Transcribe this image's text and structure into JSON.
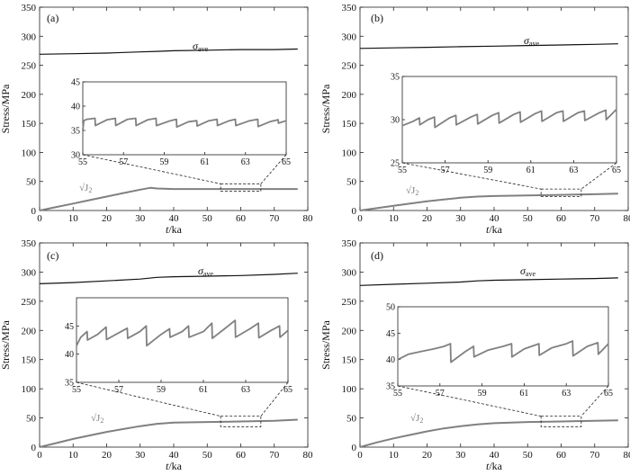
{
  "figure": {
    "panel_count": 4
  },
  "chart_data": [
    {
      "type": "line",
      "panel_label": "(a)",
      "xlabel_italic": "t",
      "xlabel_unit": "/ka",
      "ylabel": "Stress/MPa",
      "xlim": [
        0,
        80
      ],
      "ylim": [
        0,
        350
      ],
      "xticks": [
        "0",
        "10",
        "20",
        "30",
        "40",
        "50",
        "60",
        "70",
        "80"
      ],
      "yticks": [
        "0",
        "50",
        "100",
        "150",
        "200",
        "250",
        "300",
        "350"
      ],
      "series": [
        {
          "name": "sigma_ave",
          "label_main": "σ",
          "label_sub": "ave",
          "color": "#111111",
          "x": [
            0,
            10,
            20,
            30,
            35,
            40,
            50,
            60,
            70,
            77
          ],
          "y": [
            269,
            270,
            271,
            273,
            274,
            275,
            276,
            277,
            277,
            278
          ]
        },
        {
          "name": "sqrt_J2",
          "label_main": "√J",
          "label_sub": "2",
          "color": "#808080",
          "x": [
            0,
            5,
            10,
            15,
            20,
            25,
            30,
            33,
            35,
            40,
            50,
            60,
            70,
            77
          ],
          "y": [
            0,
            6,
            12,
            18,
            24,
            30,
            36,
            39,
            38,
            37,
            37,
            37,
            37,
            37
          ]
        }
      ],
      "inset": {
        "xlim": [
          55,
          65
        ],
        "ylim": [
          30,
          45
        ],
        "xticks": [
          "55",
          "57",
          "59",
          "61",
          "63",
          "65"
        ],
        "yticks": [
          "30",
          "35",
          "40",
          "45"
        ],
        "zoom_y": [
          33,
          46
        ],
        "x": [
          55,
          55.05,
          55.2,
          55.6,
          55.62,
          56.2,
          56.6,
          56.62,
          57.2,
          57.6,
          57.62,
          58.2,
          58.6,
          58.62,
          59.3,
          59.6,
          59.62,
          60.2,
          60.6,
          60.62,
          61.2,
          61.6,
          61.62,
          62.2,
          62.5,
          62.52,
          63.2,
          63.6,
          63.62,
          64.2,
          64.6,
          64.62,
          65
        ],
        "y": [
          35,
          37,
          37.3,
          37.5,
          36,
          37.2,
          37.5,
          36,
          37.3,
          37.5,
          36,
          37.2,
          37.5,
          36,
          37,
          37.3,
          35.7,
          36.8,
          37,
          35.9,
          37,
          37.3,
          36,
          37,
          37.3,
          36,
          37,
          37.3,
          35.8,
          36.8,
          37.2,
          36.5,
          37
        ]
      }
    },
    {
      "type": "line",
      "panel_label": "(b)",
      "xlabel_italic": "t",
      "xlabel_unit": "/ka",
      "ylabel": "Stress/MPa",
      "xlim": [
        0,
        80
      ],
      "ylim": [
        0,
        350
      ],
      "xticks": [
        "0",
        "10",
        "20",
        "30",
        "40",
        "50",
        "60",
        "70",
        "80"
      ],
      "yticks": [
        "0",
        "50",
        "100",
        "150",
        "200",
        "250",
        "300",
        "350"
      ],
      "series": [
        {
          "name": "sigma_ave",
          "label_main": "σ",
          "label_sub": "ave",
          "color": "#111111",
          "x": [
            0,
            10,
            20,
            30,
            40,
            50,
            60,
            70,
            77
          ],
          "y": [
            279,
            280,
            281,
            282,
            283,
            284,
            285,
            286,
            287
          ]
        },
        {
          "name": "sqrt_J2",
          "label_main": "√J",
          "label_sub": "2",
          "color": "#808080",
          "x": [
            0,
            5,
            10,
            15,
            20,
            25,
            30,
            35,
            40,
            50,
            60,
            70,
            77
          ],
          "y": [
            0,
            4,
            8,
            12,
            16,
            19,
            22,
            24,
            25,
            26,
            27,
            28,
            29
          ]
        }
      ],
      "inset": {
        "xlim": [
          55,
          65
        ],
        "ylim": [
          25,
          35
        ],
        "xticks": [
          "55",
          "57",
          "59",
          "61",
          "63",
          "65"
        ],
        "yticks": [
          "25",
          "30",
          "35"
        ],
        "zoom_y": [
          24,
          37
        ],
        "x": [
          55,
          55.5,
          55.8,
          55.82,
          56.2,
          56.5,
          56.52,
          57.2,
          57.5,
          57.52,
          58.2,
          58.5,
          58.52,
          59.2,
          59.5,
          59.52,
          60.2,
          60.5,
          60.52,
          61.2,
          61.5,
          61.52,
          62.2,
          62.5,
          62.52,
          63.2,
          63.5,
          63.52,
          64.2,
          64.5,
          64.52,
          65
        ],
        "y": [
          29.3,
          29.8,
          30.2,
          29.4,
          30,
          30.3,
          29.1,
          30.2,
          30.5,
          29.4,
          30.3,
          30.6,
          29.5,
          30.5,
          30.8,
          29.6,
          30.6,
          30.9,
          29.7,
          30.7,
          31.0,
          29.8,
          30.8,
          31.0,
          29.8,
          30.8,
          31.0,
          29.9,
          30.8,
          31.1,
          30.0,
          31.2
        ]
      }
    },
    {
      "type": "line",
      "panel_label": "(c)",
      "xlabel_italic": "t",
      "xlabel_unit": "/ka",
      "ylabel": "Stress/MPa",
      "xlim": [
        0,
        80
      ],
      "ylim": [
        0,
        350
      ],
      "xticks": [
        "0",
        "10",
        "20",
        "30",
        "40",
        "50",
        "60",
        "70",
        "80"
      ],
      "yticks": [
        "0",
        "50",
        "100",
        "150",
        "200",
        "250",
        "300",
        "350"
      ],
      "series": [
        {
          "name": "sigma_ave",
          "label_main": "σ",
          "label_sub": "ave",
          "color": "#111111",
          "x": [
            0,
            10,
            20,
            30,
            35,
            40,
            50,
            60,
            70,
            77
          ],
          "y": [
            280,
            282,
            285,
            288,
            291,
            292,
            293,
            294,
            296,
            298
          ]
        },
        {
          "name": "sqrt_J2",
          "label_main": "√J",
          "label_sub": "2",
          "color": "#808080",
          "x": [
            0,
            5,
            10,
            15,
            20,
            25,
            30,
            35,
            40,
            50,
            60,
            70,
            77
          ],
          "y": [
            0,
            7,
            14,
            20,
            26,
            31,
            36,
            40,
            42,
            43,
            44,
            45,
            47
          ]
        }
      ],
      "inset": {
        "xlim": [
          55,
          65
        ],
        "ylim": [
          35,
          50
        ],
        "xticks": [
          "55",
          "57",
          "59",
          "61",
          "63",
          "65"
        ],
        "yticks": [
          "35",
          "40",
          "45"
        ],
        "zoom_y": [
          35,
          53
        ],
        "x": [
          55,
          55.2,
          55.5,
          55.52,
          56,
          56.4,
          56.42,
          57,
          57.4,
          57.42,
          58,
          58.3,
          58.32,
          59,
          59.4,
          59.42,
          60,
          60.3,
          60.32,
          61,
          61.4,
          61.42,
          62,
          62.5,
          62.52,
          63.2,
          63.6,
          63.62,
          64.2,
          64.6,
          64.62,
          65
        ],
        "y": [
          41.5,
          43,
          44,
          42.5,
          43.5,
          44.8,
          42.6,
          43.8,
          44.6,
          42.8,
          44,
          45,
          41.5,
          43.5,
          44.5,
          43,
          44,
          45,
          43,
          44,
          45.5,
          42.8,
          44.5,
          46,
          43,
          44.5,
          45.5,
          42.9,
          44.2,
          45,
          43,
          44.2
        ]
      }
    },
    {
      "type": "line",
      "panel_label": "(d)",
      "xlabel_italic": "t",
      "xlabel_unit": "/ka",
      "ylabel": "Stress/MPa",
      "xlim": [
        0,
        80
      ],
      "ylim": [
        0,
        350
      ],
      "xticks": [
        "0",
        "10",
        "20",
        "30",
        "40",
        "50",
        "60",
        "70",
        "80"
      ],
      "yticks": [
        "0",
        "50",
        "100",
        "150",
        "200",
        "250",
        "300",
        "350"
      ],
      "series": [
        {
          "name": "sigma_ave",
          "label_main": "σ",
          "label_sub": "ave",
          "color": "#111111",
          "x": [
            0,
            10,
            20,
            30,
            35,
            40,
            50,
            60,
            70,
            77
          ],
          "y": [
            277,
            279,
            281,
            283,
            285,
            286,
            287,
            288,
            289,
            290
          ]
        },
        {
          "name": "sqrt_J2",
          "label_main": "√J",
          "label_sub": "2",
          "color": "#808080",
          "x": [
            0,
            5,
            10,
            15,
            20,
            25,
            30,
            35,
            40,
            50,
            60,
            70,
            77
          ],
          "y": [
            0,
            8,
            15,
            21,
            27,
            32,
            36,
            39,
            41,
            43,
            44,
            45,
            46
          ]
        }
      ],
      "inset": {
        "xlim": [
          55,
          65
        ],
        "ylim": [
          35,
          50
        ],
        "xticks": [
          "55",
          "57",
          "59",
          "61",
          "63",
          "65"
        ],
        "yticks": [
          "35",
          "40",
          "45",
          "50"
        ],
        "zoom_y": [
          35,
          53
        ],
        "x": [
          55,
          55.5,
          56.2,
          56.7,
          57.2,
          57.5,
          57.52,
          58.2,
          58.6,
          58.62,
          59.3,
          60,
          60.4,
          60.42,
          61,
          61.7,
          61.72,
          62.3,
          63,
          63.3,
          63.32,
          64,
          64.5,
          64.52,
          65
        ],
        "y": [
          40,
          41,
          41.6,
          42,
          42.5,
          43,
          39.5,
          41.5,
          42.5,
          40.5,
          41.8,
          42.5,
          43,
          40.5,
          42,
          43,
          40.8,
          42.2,
          43,
          43.5,
          40.7,
          42.5,
          43.2,
          41,
          43
        ]
      }
    }
  ]
}
